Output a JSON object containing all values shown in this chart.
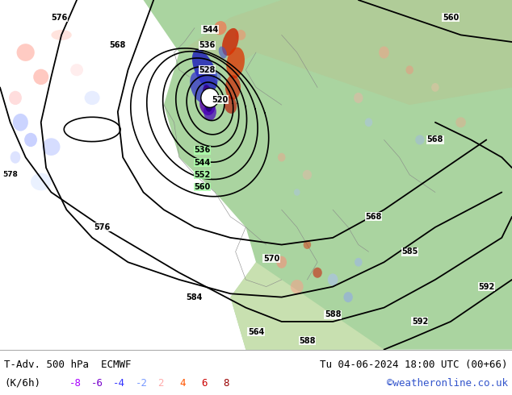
{
  "title_left": "T-Adv. 500 hPa  ECMWF",
  "title_right": "Tu 04-06-2024 18:00 UTC (00+66)",
  "unit_label": "(K/6h)",
  "legend_values": [
    "-8",
    "-6",
    "-4",
    "-2",
    "2",
    "4",
    "6",
    "8"
  ],
  "legend_colors": [
    "#aa00ff",
    "#7700cc",
    "#3333ff",
    "#7799ff",
    "#ffaaaa",
    "#ff5500",
    "#cc0000",
    "#990000"
  ],
  "credit": "©weatheronline.co.uk",
  "credit_color": "#3355cc",
  "bottom_bar_color": "#ffffff",
  "fig_width": 6.34,
  "fig_height": 4.9,
  "dpi": 100,
  "bottom_text_color": "#000000",
  "title_fontsize": 9.0,
  "legend_fontsize": 9.0,
  "ocean_color": "#dcdcdc",
  "land_green_color": "#aad4a0",
  "land_mid_color": "#c8deb0",
  "coast_color": "#888888"
}
